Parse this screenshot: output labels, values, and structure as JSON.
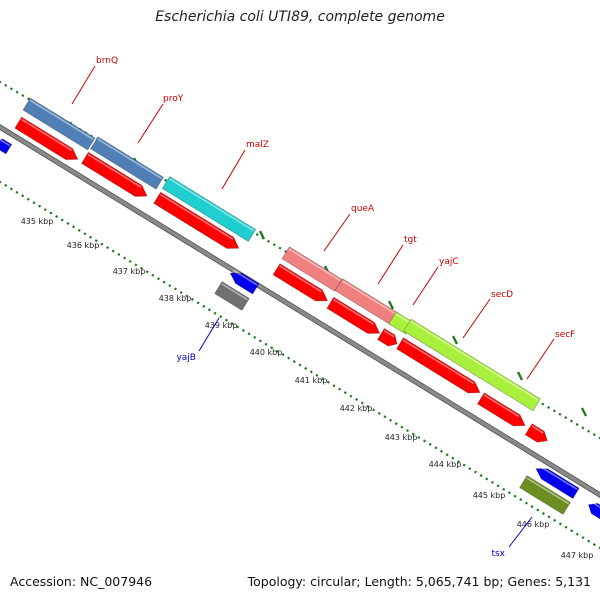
{
  "title": "Escherichia coli UTI89, complete genome",
  "footer": {
    "accession": "Accession: NC_007946",
    "summary": "Topology: circular; Length: 5,065,741 bp; Genes: 5,131"
  },
  "colors": {
    "background": "#ffffff",
    "backbone": "#8a8a8a",
    "tick_dots": "#1e7a1e",
    "forward_label": "#cc0000",
    "reverse_label": "#0000cc",
    "cds_red": "#ff0000",
    "cds_blue": "#0000ee"
  },
  "scale_labels": [
    "435 kbp",
    "436 kbp",
    "437 kbp",
    "438 kbp",
    "439 kbp",
    "440 kbp",
    "441 kbp",
    "442 kbp",
    "443 kbp",
    "444 kbp",
    "445 kbp",
    "446 kbp",
    "447 kbp"
  ],
  "genes": [
    {
      "name": "brnQ",
      "strand": "forward",
      "color": "#4f7fb5"
    },
    {
      "name": "proY",
      "strand": "forward",
      "color": "#4f7fb5"
    },
    {
      "name": "malZ",
      "strand": "forward",
      "color": "#1fcfcf"
    },
    {
      "name": "queA",
      "strand": "forward",
      "color": "#f08080"
    },
    {
      "name": "tgt",
      "strand": "forward",
      "color": "#f08080"
    },
    {
      "name": "yajC",
      "strand": "forward",
      "color": "#a8f03c"
    },
    {
      "name": "secD",
      "strand": "forward",
      "color": "#a8f03c"
    },
    {
      "name": "secF",
      "strand": "forward",
      "color": "#a8f03c"
    },
    {
      "name": "yajB",
      "strand": "reverse",
      "color": "#707070"
    },
    {
      "name": "tsx",
      "strand": "reverse",
      "color": "#6b8e23"
    }
  ]
}
